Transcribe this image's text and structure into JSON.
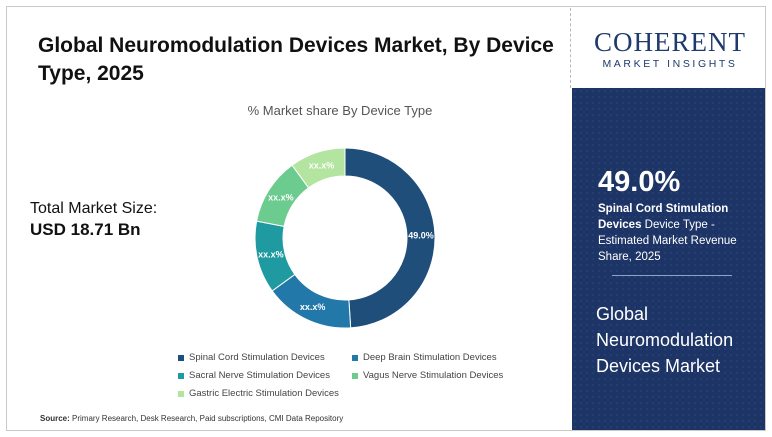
{
  "header": {
    "title": "Global Neuromodulation Devices Market, By Device Type, 2025"
  },
  "market_size": {
    "label": "Total Market Size:",
    "value": "USD 18.71 Bn"
  },
  "logo": {
    "brand": "COHERENT",
    "tagline": "MARKET INSIGHTS"
  },
  "highlight": {
    "value": "49.0%",
    "desc_bold": "Spinal Cord Stimulation Devices",
    "desc_rest": " Device Type - Estimated Market Revenue Share, 2025"
  },
  "side_title": "Global Neuromodulation Devices Market",
  "source": {
    "label": "Source:",
    "text": " Primary Research, Desk Research, Paid subscriptions, CMI Data Repository"
  },
  "colors": {
    "navy": "#1d3466",
    "spinal": "#1e4e79",
    "deep_brain": "#2278a8",
    "sacral": "#1f9aa0",
    "vagus": "#6ccb8e",
    "gastric": "#b4e5a0"
  },
  "chart_data": {
    "type": "pie",
    "title": "% Market share By Device Type",
    "donut": true,
    "legend_position": "bottom",
    "series": [
      {
        "name": "Spinal Cord Stimulation Devices",
        "value": 49.0,
        "label": "49.0%",
        "color": "#1e4e79"
      },
      {
        "name": "Deep Brain Stimulation Devices",
        "value": 16.0,
        "label": "xx.x%",
        "color": "#2278a8"
      },
      {
        "name": "Sacral Nerve Stimulation Devices",
        "value": 13.0,
        "label": "xx.x%",
        "color": "#1f9aa0"
      },
      {
        "name": "Vagus Nerve Stimulation Devices",
        "value": 12.0,
        "label": "xx.x%",
        "color": "#6ccb8e"
      },
      {
        "name": "Gastric Electric Stimulation Devices",
        "value": 10.0,
        "label": "xx.x%",
        "color": "#b4e5a0"
      }
    ]
  }
}
